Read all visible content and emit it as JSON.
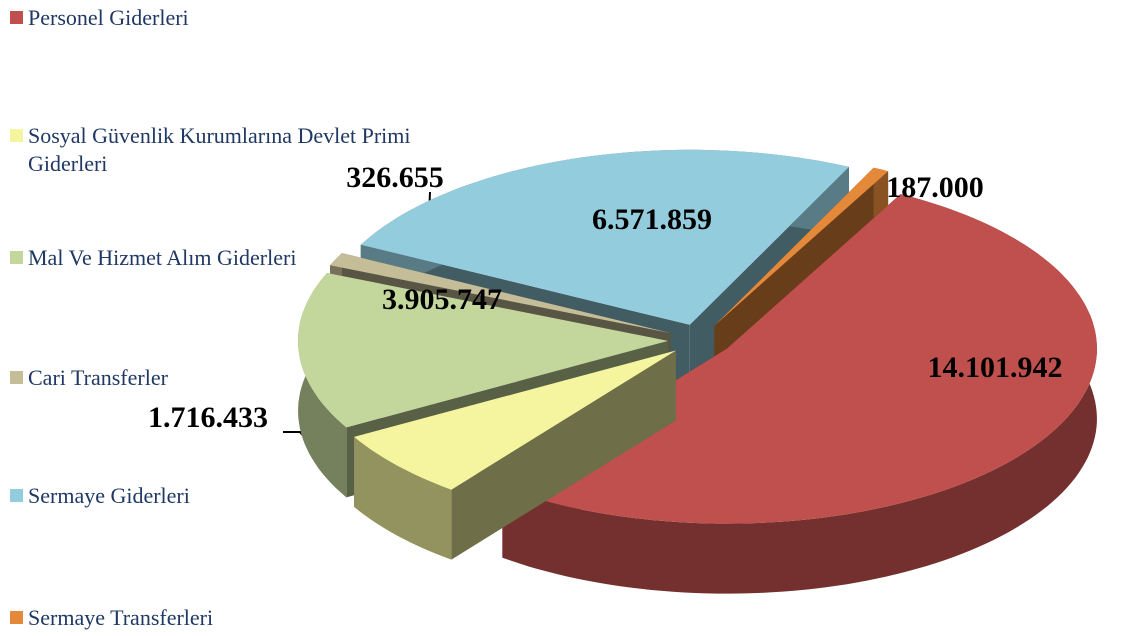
{
  "chart_data": {
    "type": "pie3d",
    "categories": [
      "Personel Giderleri",
      "Sosyal Güvenlik Kurumlarına Devlet Primi Giderleri",
      "Mal Ve Hizmet Alım Giderleri",
      "Cari Transferler",
      "Sermaye Giderleri",
      "Sermaye Transferleri"
    ],
    "values": [
      14101942,
      1716433,
      3905747,
      326655,
      6571859,
      187000
    ],
    "value_labels": [
      "14.101.942",
      "1.716.433",
      "3.905.747",
      "326.655",
      "6.571.859",
      "187.000"
    ],
    "colors": [
      "#c0504d",
      "#f5f5a0",
      "#c3d69b",
      "#c4bd97",
      "#93cddd",
      "#e4883a"
    ],
    "legend": "left"
  }
}
